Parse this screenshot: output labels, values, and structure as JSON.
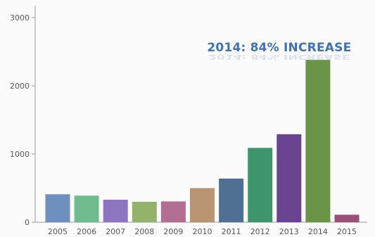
{
  "chart_data": {
    "type": "bar",
    "title": "",
    "xlabel": "",
    "ylabel": "",
    "categories": [
      "2005",
      "2006",
      "2007",
      "2008",
      "2009",
      "2010",
      "2011",
      "2012",
      "2013",
      "2014",
      "2015"
    ],
    "values": [
      410,
      390,
      330,
      300,
      305,
      500,
      640,
      1090,
      1290,
      2380,
      110
    ],
    "colors": [
      "#6e90bf",
      "#6fbd8f",
      "#8e75bf",
      "#93b36d",
      "#b26e93",
      "#b99470",
      "#4f6f95",
      "#3f966c",
      "#6a4490",
      "#6a9546",
      "#9a5078"
    ],
    "ylim": [
      0,
      3000
    ],
    "yticks": [
      0,
      1000,
      2000,
      3000
    ],
    "grid": false,
    "legend": "none",
    "annotation": {
      "text": "2014: 84% INCREASE",
      "category": "2014",
      "color": "#3f70b8"
    }
  }
}
